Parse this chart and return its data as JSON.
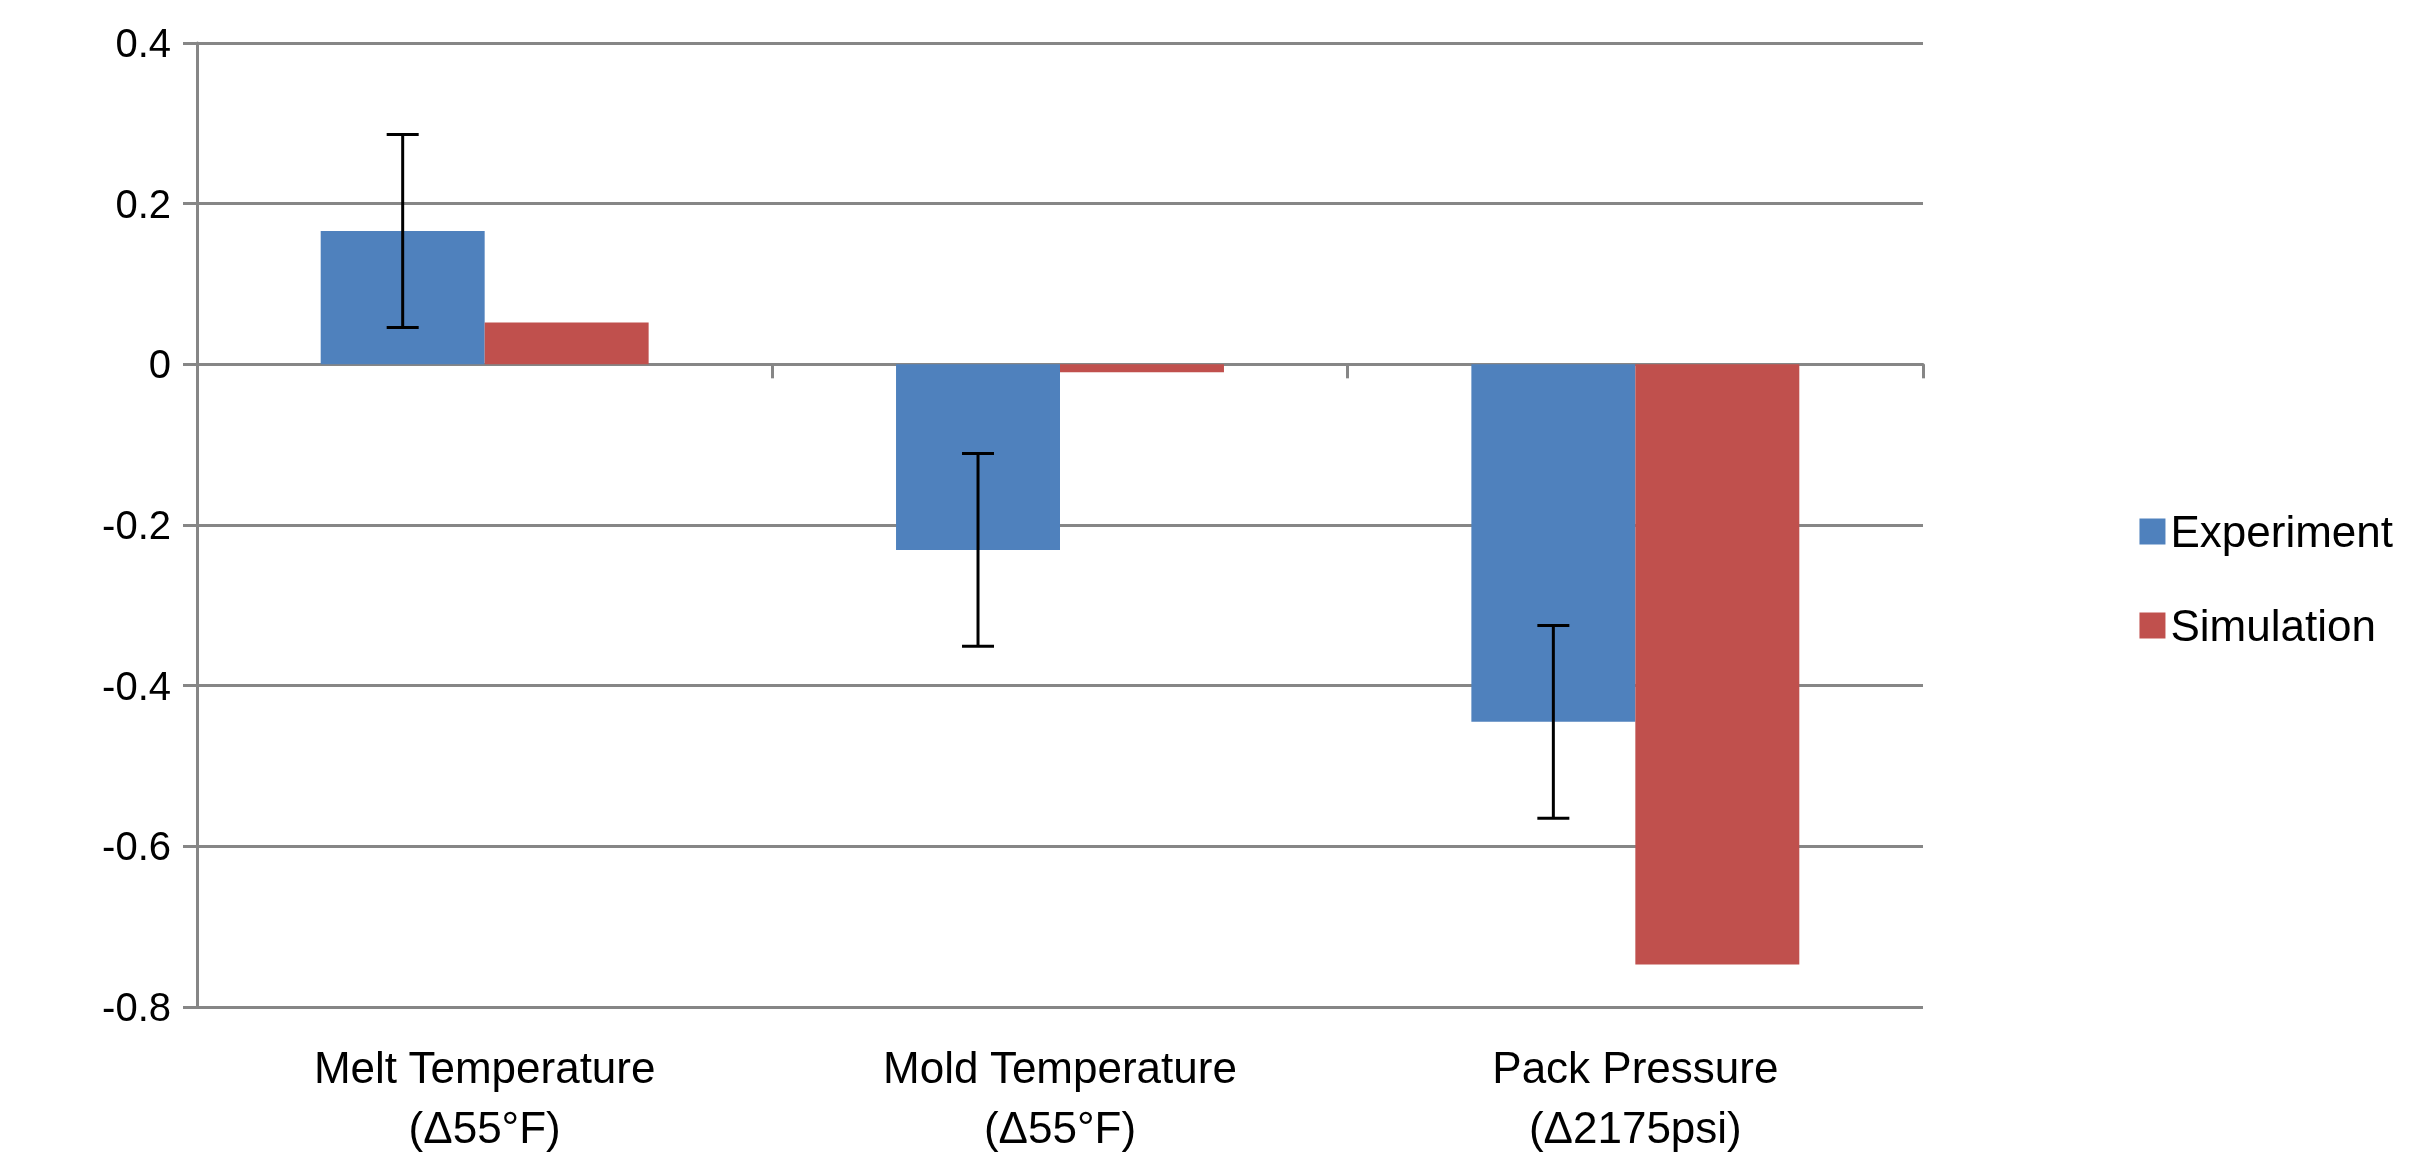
{
  "chart_data": {
    "type": "bar",
    "categories": [
      "Melt Temperature\n(Δ55°F)",
      "Mold Temperature\n(Δ55°F)",
      "Pack Pressure\n(Δ2175psi)"
    ],
    "series": [
      {
        "name": "Experiment",
        "color": "#4f81bd",
        "values": [
          0.166,
          -0.231,
          -0.445
        ],
        "errors": [
          0.12,
          0.12,
          0.12
        ]
      },
      {
        "name": "Simulation",
        "color": "#c0504d",
        "values": [
          0.052,
          -0.01,
          -0.747
        ]
      }
    ],
    "ylim": [
      -0.8,
      0.4
    ],
    "yticks": [
      -0.8,
      -0.6,
      -0.4,
      -0.2,
      0,
      0.2,
      0.4
    ],
    "grid": "y",
    "legend": "right"
  }
}
